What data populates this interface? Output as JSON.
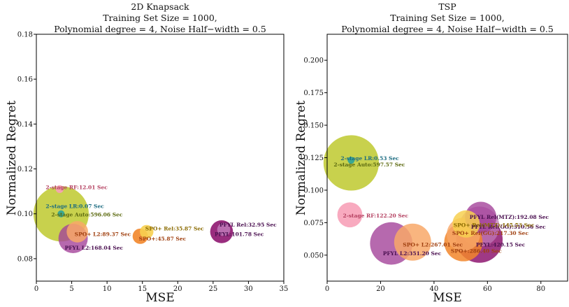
{
  "chart_data": [
    {
      "type": "scatter",
      "title_lines": [
        "2D Knapsack",
        "Training Set Size = 1000,",
        "Polynomial degree = 4, Noise Half−width = 0.5"
      ],
      "xlabel": "MSE",
      "ylabel": "Normalized Regret",
      "xlim": [
        0,
        35
      ],
      "ylim": [
        0.07,
        0.18
      ],
      "xticks": [
        0,
        5,
        10,
        15,
        20,
        25,
        30,
        35
      ],
      "yticks": [
        0.08,
        0.1,
        0.12,
        0.14,
        0.16,
        0.18
      ],
      "ytick_labels": [
        "0.08",
        "0.10",
        "0.12",
        "0.14",
        "0.16",
        "0.18"
      ],
      "grid": false,
      "points": [
        {
          "label": "2-stage Auto:596.06 Sec",
          "x": 3.5,
          "y": 0.1,
          "time": 596.06,
          "color": "#c2cc3a",
          "alpha": 0.9,
          "label_color": "#5c6a10"
        },
        {
          "label": "2-stage RF:12.01 Sec",
          "x": 3.3,
          "y": 0.111,
          "time": 12.01,
          "color": "#f7a1b8",
          "alpha": 0.9,
          "label_color": "#b44060"
        },
        {
          "label": "2-stage LR:0.07 Sec",
          "x": 3.5,
          "y": 0.1,
          "time": 0.07,
          "color": "#2aa39a",
          "alpha": 0.9,
          "label_color": "#1a6b80"
        },
        {
          "label": "PFYL L2:168.04 Sec",
          "x": 5.2,
          "y": 0.089,
          "time": 168.04,
          "color": "#a4449a",
          "alpha": 0.8,
          "label_color": "#4a1050"
        },
        {
          "label": "SPO+ L2:89.37 Sec",
          "x": 5.8,
          "y": 0.092,
          "time": 89.37,
          "color": "#f8a868",
          "alpha": 0.85,
          "label_color": "#a04010"
        },
        {
          "label": "SPO+:45.87 Sec",
          "x": 14.7,
          "y": 0.09,
          "time": 45.87,
          "color": "#f2862a",
          "alpha": 0.9,
          "label_color": "#a04010"
        },
        {
          "label": "SPO+ Rel:35.87 Sec",
          "x": 15.6,
          "y": 0.092,
          "time": 35.87,
          "color": "#f7d050",
          "alpha": 0.9,
          "label_color": "#8a6a00"
        },
        {
          "label": "PFYL:101.78 Sec",
          "x": 26.2,
          "y": 0.092,
          "time": 101.78,
          "color": "#8e1670",
          "alpha": 0.9,
          "label_color": "#4a1050"
        },
        {
          "label": "PFYL Rel:32.95 Sec",
          "x": 26.5,
          "y": 0.093,
          "time": 32.95,
          "color": "#c07ab8",
          "alpha": 0.85,
          "label_color": "#4a1050"
        }
      ]
    },
    {
      "type": "scatter",
      "title_lines": [
        "TSP",
        "Training Set Size = 1000,",
        "Polynomial degree = 4, Noise Half−width = 0.5"
      ],
      "xlabel": "MSE",
      "ylabel": "Normalized Regret",
      "xlim": [
        0,
        90
      ],
      "ylim": [
        0.03,
        0.22
      ],
      "xticks": [
        0,
        20,
        40,
        60,
        80
      ],
      "yticks": [
        0.05,
        0.075,
        0.1,
        0.125,
        0.15,
        0.175,
        0.2
      ],
      "ytick_labels": [
        "0.050",
        "0.075",
        "0.100",
        "0.125",
        "0.150",
        "0.175",
        "0.200"
      ],
      "grid": false,
      "points": [
        {
          "label": "2-stage Auto:597.57 Sec",
          "x": 9.0,
          "y": 0.121,
          "time": 597.57,
          "color": "#c2cc3a",
          "alpha": 0.9,
          "label_color": "#5c6a10"
        },
        {
          "label": "2-stage LR:0.53 Sec",
          "x": 9.0,
          "y": 0.123,
          "time": 0.53,
          "color": "#2aa39a",
          "alpha": 0.9,
          "label_color": "#1a6b80"
        },
        {
          "label": "2-stage RF:122.20 Sec",
          "x": 8.5,
          "y": 0.081,
          "time": 122.2,
          "color": "#f7a1b8",
          "alpha": 0.9,
          "label_color": "#b44060"
        },
        {
          "label": "PFYL L2:351.20 Sec",
          "x": 24.0,
          "y": 0.059,
          "time": 351.2,
          "color": "#a4449a",
          "alpha": 0.8,
          "label_color": "#4a1050"
        },
        {
          "label": "SPO+ L2:267.01 Sec",
          "x": 32.0,
          "y": 0.06,
          "time": 267.01,
          "color": "#f8a868",
          "alpha": 0.85,
          "label_color": "#a04010"
        },
        {
          "label": "PFYL:420.15 Sec",
          "x": 57.0,
          "y": 0.062,
          "time": 420.15,
          "color": "#8e1670",
          "alpha": 0.85,
          "label_color": "#4a1050"
        },
        {
          "label": "SPO+:286.40 Sec",
          "x": 51.0,
          "y": 0.06,
          "time": 286.4,
          "color": "#f2862a",
          "alpha": 0.85,
          "label_color": "#a04010"
        },
        {
          "label": "PFYL Rel(MTZ):192.08 Sec",
          "x": 57.5,
          "y": 0.079,
          "time": 192.08,
          "color": "#a4449a",
          "alpha": 0.8,
          "label_color": "#4a1050"
        },
        {
          "label": "PFYL Rel(GG):310.56 Sec",
          "x": 57.0,
          "y": 0.072,
          "time": 310.56,
          "color": "#c07ab8",
          "alpha": 0.75,
          "label_color": "#4a1050"
        },
        {
          "label": "SPO+ Rel(GG):217.30 Sec",
          "x": 51.0,
          "y": 0.066,
          "time": 217.3,
          "color": "#f8a868",
          "alpha": 0.8,
          "label_color": "#a04010"
        },
        {
          "label": "SPO+ Rel(MTZ):145.53 Sec",
          "x": 52.0,
          "y": 0.074,
          "time": 145.53,
          "color": "#f7d050",
          "alpha": 0.85,
          "label_color": "#8a6a00"
        }
      ]
    }
  ]
}
